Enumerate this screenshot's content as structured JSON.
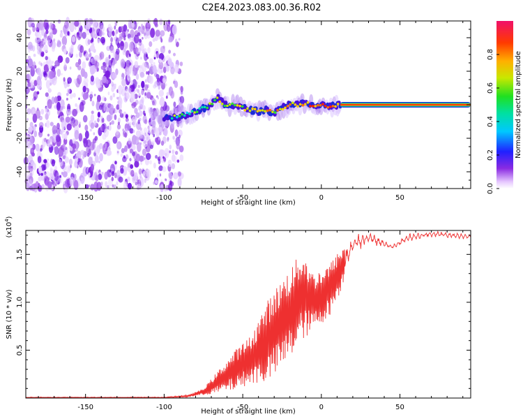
{
  "title": "C2E4.2023.083.00.36.R02",
  "chart_data": [
    {
      "type": "heatmap",
      "xlabel": "Height of straight line (km)",
      "ylabel": "Frequency (Hz)",
      "xlim": [
        -188,
        95
      ],
      "ylim": [
        -50,
        50
      ],
      "xticks": [
        -150,
        -100,
        -50,
        0,
        50
      ],
      "yticks": [
        -40,
        -20,
        0,
        20,
        40
      ],
      "colorbar": {
        "label": "Normalized spectral amplitude",
        "range": [
          0,
          1
        ],
        "ticks": [
          "0.0",
          "0.2",
          "0.4",
          "0.6",
          "0.8"
        ]
      },
      "noise_region_x": [
        -188,
        -88
      ],
      "trace": {
        "x": [
          -100,
          -90,
          -80,
          -72,
          -66,
          -60,
          -55,
          -50,
          -45,
          -40,
          -35,
          -30,
          -25,
          -20,
          -15,
          -10,
          -5,
          0,
          5,
          12,
          95
        ],
        "y": [
          -8,
          -7,
          -4,
          -1,
          4,
          -1,
          0,
          -2,
          -3,
          -4,
          -3,
          -5,
          -2,
          1,
          0,
          1,
          -1,
          0,
          -1,
          0,
          0
        ]
      },
      "strong_line_x": [
        12,
        95
      ]
    },
    {
      "type": "line",
      "xlabel": "Height of straight line (km)",
      "ylabel": "SNR (10 * v/v)",
      "multiplier": "(x10",
      "multiplier_exp": "4",
      "multiplier_close": ")",
      "xlim": [
        -188,
        95
      ],
      "ylim": [
        0,
        1.75
      ],
      "xticks": [
        -150,
        -100,
        -50,
        0,
        50
      ],
      "yticks": [
        0.5,
        1.0,
        1.5
      ],
      "color": "#ee3030",
      "envelope": {
        "x": [
          -188,
          -100,
          -85,
          -75,
          -65,
          -55,
          -45,
          -35,
          -25,
          -18,
          -12,
          -5,
          5,
          12,
          20,
          30,
          45,
          55,
          70,
          95
        ],
        "lower": [
          0.0,
          0.0,
          0.01,
          0.03,
          0.05,
          0.08,
          0.15,
          0.15,
          0.3,
          0.45,
          0.6,
          0.7,
          0.85,
          1.1,
          1.5,
          1.6,
          1.55,
          1.62,
          1.68,
          1.65
        ],
        "upper": [
          0.01,
          0.01,
          0.03,
          0.1,
          0.3,
          0.5,
          0.65,
          1.0,
          1.25,
          1.4,
          1.55,
          1.3,
          1.4,
          1.55,
          1.7,
          1.75,
          1.6,
          1.72,
          1.75,
          1.72
        ]
      }
    }
  ]
}
